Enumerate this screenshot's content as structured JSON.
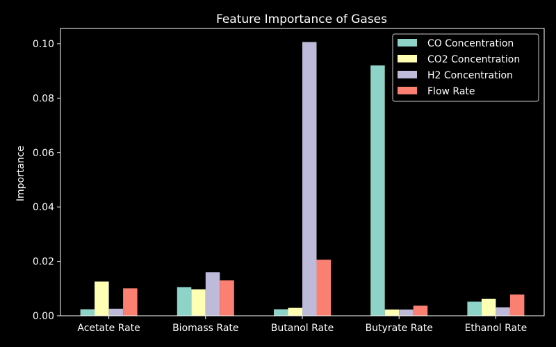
{
  "chart_data": {
    "type": "bar",
    "title": "Feature Importance of Gases",
    "xlabel": "",
    "ylabel": "Importance",
    "categories": [
      "Acetate Rate",
      "Biomass Rate",
      "Butanol Rate",
      "Butyrate Rate",
      "Ethanol Rate"
    ],
    "series": [
      {
        "name": "CO Concentration",
        "color": "#8dd3c7",
        "values": [
          0.0024,
          0.0105,
          0.0024,
          0.092,
          0.0052
        ]
      },
      {
        "name": "CO2 Concentration",
        "color": "#ffffb3",
        "values": [
          0.0126,
          0.0097,
          0.0029,
          0.0023,
          0.0062
        ]
      },
      {
        "name": "H2 Concentration",
        "color": "#bebada",
        "values": [
          0.0026,
          0.016,
          0.1006,
          0.0023,
          0.0031
        ]
      },
      {
        "name": "Flow Rate",
        "color": "#fb8072",
        "values": [
          0.0101,
          0.013,
          0.0206,
          0.0037,
          0.0078
        ]
      }
    ],
    "ylim": [
      0,
      0.1056
    ],
    "yticks": [
      "0.00",
      "0.02",
      "0.04",
      "0.06",
      "0.08",
      "0.10"
    ],
    "grid": false,
    "legend": "top-right"
  }
}
